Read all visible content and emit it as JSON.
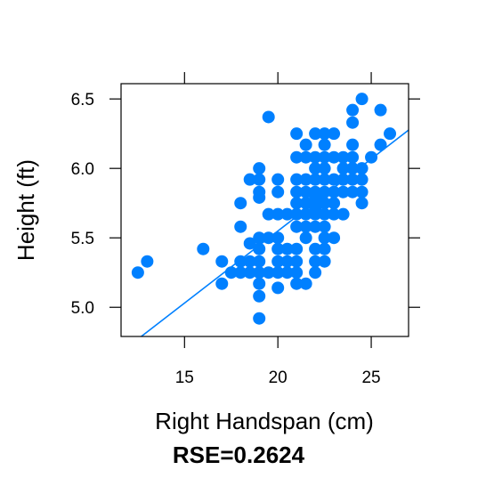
{
  "chart_data": {
    "type": "scatter",
    "title": "",
    "xlabel": "Right Handspan (cm)",
    "ylabel": "Height (ft)",
    "xlim": [
      11.6,
      27.0
    ],
    "ylim": [
      4.79,
      6.61
    ],
    "x_ticks": [
      15,
      20,
      25
    ],
    "y_ticks": [
      5.0,
      5.5,
      6.0,
      6.5
    ],
    "x_tick_labels": [
      "15",
      "20",
      "25"
    ],
    "y_tick_labels": [
      "5.0",
      "5.5",
      "6.0",
      "6.5"
    ],
    "grid": false,
    "legend": "none",
    "point_color": "#0080ff",
    "line_color": "#0080ff",
    "regression_line": {
      "x": [
        12.5,
        27.0
      ],
      "y": [
        4.771,
        6.276
      ]
    },
    "annotation": "RSE=0.2624",
    "points": [
      {
        "x": 12.5,
        "y": 5.25
      },
      {
        "x": 13.0,
        "y": 5.33
      },
      {
        "x": 16.0,
        "y": 5.42
      },
      {
        "x": 17.0,
        "y": 5.33
      },
      {
        "x": 17.0,
        "y": 5.17
      },
      {
        "x": 17.5,
        "y": 5.25
      },
      {
        "x": 18.0,
        "y": 5.33
      },
      {
        "x": 18.0,
        "y": 5.25
      },
      {
        "x": 18.0,
        "y": 5.58
      },
      {
        "x": 18.0,
        "y": 5.75
      },
      {
        "x": 18.5,
        "y": 5.92
      },
      {
        "x": 18.5,
        "y": 5.46
      },
      {
        "x": 18.5,
        "y": 5.25
      },
      {
        "x": 18.5,
        "y": 5.33
      },
      {
        "x": 19.0,
        "y": 6.0
      },
      {
        "x": 19.0,
        "y": 5.92
      },
      {
        "x": 19.0,
        "y": 5.83
      },
      {
        "x": 19.0,
        "y": 5.79
      },
      {
        "x": 19.0,
        "y": 5.5
      },
      {
        "x": 19.0,
        "y": 5.42
      },
      {
        "x": 19.0,
        "y": 5.33
      },
      {
        "x": 19.0,
        "y": 5.25
      },
      {
        "x": 19.0,
        "y": 5.17
      },
      {
        "x": 19.0,
        "y": 5.08
      },
      {
        "x": 19.0,
        "y": 4.92
      },
      {
        "x": 19.5,
        "y": 6.37
      },
      {
        "x": 19.5,
        "y": 5.67
      },
      {
        "x": 19.5,
        "y": 5.5
      },
      {
        "x": 19.5,
        "y": 5.25
      },
      {
        "x": 20.0,
        "y": 5.92
      },
      {
        "x": 20.0,
        "y": 5.83
      },
      {
        "x": 20.0,
        "y": 5.67
      },
      {
        "x": 20.0,
        "y": 5.5
      },
      {
        "x": 20.0,
        "y": 5.42
      },
      {
        "x": 20.0,
        "y": 5.33
      },
      {
        "x": 20.0,
        "y": 5.25
      },
      {
        "x": 20.0,
        "y": 5.14
      },
      {
        "x": 20.5,
        "y": 5.67
      },
      {
        "x": 20.5,
        "y": 5.42
      },
      {
        "x": 20.5,
        "y": 5.33
      },
      {
        "x": 20.5,
        "y": 5.25
      },
      {
        "x": 21.0,
        "y": 6.25
      },
      {
        "x": 21.0,
        "y": 6.08
      },
      {
        "x": 21.0,
        "y": 5.92
      },
      {
        "x": 21.0,
        "y": 5.83
      },
      {
        "x": 21.0,
        "y": 5.75
      },
      {
        "x": 21.0,
        "y": 5.67
      },
      {
        "x": 21.0,
        "y": 5.58
      },
      {
        "x": 21.0,
        "y": 5.42
      },
      {
        "x": 21.0,
        "y": 5.33
      },
      {
        "x": 21.0,
        "y": 5.25
      },
      {
        "x": 21.0,
        "y": 5.17
      },
      {
        "x": 21.5,
        "y": 6.17
      },
      {
        "x": 21.5,
        "y": 6.08
      },
      {
        "x": 21.5,
        "y": 5.92
      },
      {
        "x": 21.5,
        "y": 5.83
      },
      {
        "x": 21.5,
        "y": 5.75
      },
      {
        "x": 21.5,
        "y": 5.67
      },
      {
        "x": 21.5,
        "y": 5.58
      },
      {
        "x": 21.5,
        "y": 5.5
      },
      {
        "x": 21.5,
        "y": 5.17
      },
      {
        "x": 22.0,
        "y": 6.25
      },
      {
        "x": 22.0,
        "y": 6.08
      },
      {
        "x": 22.0,
        "y": 6.0
      },
      {
        "x": 22.0,
        "y": 5.92
      },
      {
        "x": 22.0,
        "y": 5.83
      },
      {
        "x": 22.0,
        "y": 5.79
      },
      {
        "x": 22.0,
        "y": 5.75
      },
      {
        "x": 22.0,
        "y": 5.71
      },
      {
        "x": 22.0,
        "y": 5.67
      },
      {
        "x": 22.0,
        "y": 5.58
      },
      {
        "x": 22.0,
        "y": 5.42
      },
      {
        "x": 22.0,
        "y": 5.33
      },
      {
        "x": 22.0,
        "y": 5.25
      },
      {
        "x": 22.5,
        "y": 6.25
      },
      {
        "x": 22.5,
        "y": 6.17
      },
      {
        "x": 22.5,
        "y": 6.08
      },
      {
        "x": 22.5,
        "y": 6.0
      },
      {
        "x": 22.5,
        "y": 5.92
      },
      {
        "x": 22.5,
        "y": 5.83
      },
      {
        "x": 22.5,
        "y": 5.75
      },
      {
        "x": 22.5,
        "y": 5.67
      },
      {
        "x": 22.5,
        "y": 5.58
      },
      {
        "x": 22.5,
        "y": 5.5
      },
      {
        "x": 22.5,
        "y": 5.42
      },
      {
        "x": 22.5,
        "y": 5.33
      },
      {
        "x": 23.0,
        "y": 6.25
      },
      {
        "x": 23.0,
        "y": 6.08
      },
      {
        "x": 23.0,
        "y": 5.92
      },
      {
        "x": 23.0,
        "y": 5.83
      },
      {
        "x": 23.0,
        "y": 5.75
      },
      {
        "x": 23.0,
        "y": 5.67
      },
      {
        "x": 23.0,
        "y": 5.5
      },
      {
        "x": 23.5,
        "y": 6.08
      },
      {
        "x": 23.5,
        "y": 6.0
      },
      {
        "x": 23.5,
        "y": 5.92
      },
      {
        "x": 23.5,
        "y": 5.83
      },
      {
        "x": 23.5,
        "y": 5.67
      },
      {
        "x": 24.0,
        "y": 6.42
      },
      {
        "x": 24.0,
        "y": 6.33
      },
      {
        "x": 24.0,
        "y": 6.17
      },
      {
        "x": 24.0,
        "y": 6.08
      },
      {
        "x": 24.0,
        "y": 6.0
      },
      {
        "x": 24.0,
        "y": 5.92
      },
      {
        "x": 24.0,
        "y": 5.83
      },
      {
        "x": 24.5,
        "y": 6.5
      },
      {
        "x": 24.5,
        "y": 6.0
      },
      {
        "x": 24.5,
        "y": 5.92
      },
      {
        "x": 24.5,
        "y": 5.83
      },
      {
        "x": 24.5,
        "y": 5.75
      },
      {
        "x": 25.0,
        "y": 6.08
      },
      {
        "x": 25.5,
        "y": 6.42
      },
      {
        "x": 25.5,
        "y": 6.17
      },
      {
        "x": 26.0,
        "y": 6.25
      }
    ]
  }
}
